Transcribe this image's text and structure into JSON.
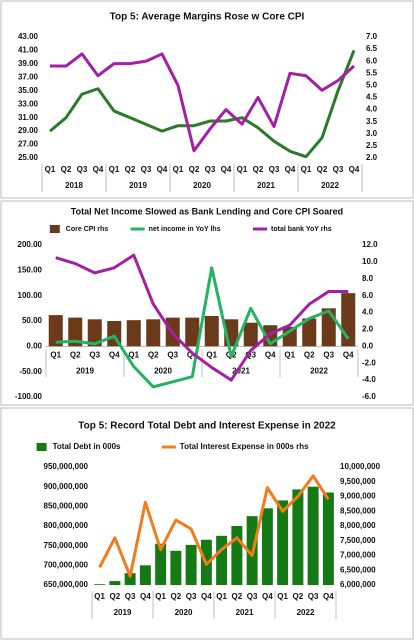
{
  "chart_data": [
    {
      "type": "line",
      "title": "Top 5: Average Margins Rose w Core CPI",
      "categories": [
        "Q1",
        "Q2",
        "Q3",
        "Q4",
        "Q1",
        "Q2",
        "Q3",
        "Q4",
        "Q1",
        "Q2",
        "Q3",
        "Q4",
        "Q1",
        "Q2",
        "Q3",
        "Q4",
        "Q1",
        "Q2",
        "Q3",
        "Q4"
      ],
      "year_groups": [
        "2018",
        "2019",
        "2020",
        "2021",
        "2022"
      ],
      "ylim": [
        25,
        43
      ],
      "yticks": [
        {
          "value": 43,
          "label": "43.00"
        },
        {
          "value": 41,
          "label": "41.00"
        },
        {
          "value": 39,
          "label": "39.00"
        },
        {
          "value": 37,
          "label": "37.00"
        },
        {
          "value": 35,
          "label": "35.00"
        },
        {
          "value": 33,
          "label": "33.00"
        },
        {
          "value": 31,
          "label": "31.00"
        },
        {
          "value": 29,
          "label": "29.00"
        },
        {
          "value": 27,
          "label": "27.00"
        },
        {
          "value": 25,
          "label": "25.00"
        }
      ],
      "y2lim": [
        2,
        7
      ],
      "y2ticks": [
        {
          "value": 7,
          "label": "7.0"
        },
        {
          "value": 6.5,
          "label": "6.5"
        },
        {
          "value": 6,
          "label": "6.0"
        },
        {
          "value": 5.5,
          "label": "5.5"
        },
        {
          "value": 5,
          "label": "5.0"
        },
        {
          "value": 4.5,
          "label": "4.5"
        },
        {
          "value": 4,
          "label": "4.0"
        },
        {
          "value": 3.5,
          "label": "3.5"
        },
        {
          "value": 3,
          "label": "3.0"
        },
        {
          "value": 2.5,
          "label": "2.5"
        },
        {
          "value": 2,
          "label": "2.0"
        }
      ],
      "series": [
        {
          "type": "line",
          "color": "#2a7a2a",
          "values": [
            29,
            31,
            34.5,
            35.3,
            32,
            31,
            30,
            29,
            29.8,
            29.8,
            30.5,
            30.5,
            31,
            29.5,
            27.5,
            26,
            25.2,
            28,
            35,
            41
          ]
        },
        {
          "type": "line",
          "axis": "y2",
          "color": "#a51fa5",
          "values": [
            5.8,
            5.8,
            6.3,
            5.4,
            5.9,
            5.9,
            6.0,
            6.3,
            5.0,
            2.3,
            3.2,
            4.0,
            3.4,
            4.5,
            3.3,
            5.5,
            5.4,
            4.8,
            5.2,
            5.8
          ]
        }
      ]
    },
    {
      "type": "combo",
      "title": "Total Net Income Slowed as Bank Lending and Core CPI Soared",
      "categories": [
        "Q1",
        "Q2",
        "Q3",
        "Q4",
        "Q1",
        "Q2",
        "Q3",
        "Q4",
        "Q1",
        "Q2",
        "Q3",
        "Q4",
        "Q1",
        "Q2",
        "Q3",
        "Q4"
      ],
      "year_groups": [
        "2019",
        "2020",
        "2021",
        "2022"
      ],
      "legend": "top",
      "ylim": [
        -100,
        200
      ],
      "yticks": [
        {
          "value": 200,
          "label": "200.00"
        },
        {
          "value": 150,
          "label": "150.00"
        },
        {
          "value": 100,
          "label": "100.00"
        },
        {
          "value": 50,
          "label": "50.00"
        },
        {
          "value": 0,
          "label": "0.00"
        },
        {
          "value": -50,
          "label": "-50.00"
        },
        {
          "value": -100,
          "label": "-100.00"
        }
      ],
      "y2lim": [
        -6,
        12
      ],
      "y2ticks": [
        {
          "value": 12,
          "label": "12.0"
        },
        {
          "value": 10,
          "label": "10.0"
        },
        {
          "value": 8,
          "label": "8.0"
        },
        {
          "value": 6,
          "label": "6.0"
        },
        {
          "value": 4,
          "label": "4.0"
        },
        {
          "value": 2,
          "label": "2.0"
        },
        {
          "value": 0,
          "label": "0.0"
        },
        {
          "value": -2,
          "label": "-2.0"
        },
        {
          "value": -4,
          "label": "-4.0"
        },
        {
          "value": -6,
          "label": "-6.0"
        }
      ],
      "series": [
        {
          "name": "Core CPI rhs",
          "type": "bar",
          "axis": "y2",
          "color": "#6b3a1b",
          "values": [
            3.7,
            3.4,
            3.2,
            3.0,
            3.1,
            3.2,
            3.4,
            3.4,
            3.6,
            3.2,
            2.8,
            2.5,
            2.3,
            3.3,
            4.5,
            6.3
          ]
        },
        {
          "name": "net income in YoY lhs",
          "type": "line",
          "color": "#22b463",
          "values": [
            8,
            10,
            5,
            20,
            -40,
            -80,
            -70,
            -60,
            155,
            -20,
            75,
            5,
            30,
            55,
            70,
            15
          ]
        },
        {
          "name": "total bank YoY rhs",
          "type": "line",
          "axis": "y2",
          "color": "#a51fa5",
          "values": [
            10.5,
            9.8,
            8.7,
            9.3,
            10.8,
            5.0,
            1.5,
            -0.8,
            -2.5,
            -4.0,
            -0.5,
            1.5,
            2.5,
            5.0,
            6.5,
            6.5
          ]
        }
      ]
    },
    {
      "type": "combo",
      "title": "Top 5: Record Total Debt and Interest Expense in 2022",
      "categories": [
        "Q1",
        "Q2",
        "Q3",
        "Q4",
        "Q1",
        "Q2",
        "Q3",
        "Q4",
        "Q1",
        "Q2",
        "Q3",
        "Q4",
        "Q1",
        "Q2",
        "Q3",
        "Q4"
      ],
      "year_groups": [
        "2019",
        "2020",
        "2021",
        "2022"
      ],
      "legend": "top",
      "ylim": [
        650000000,
        950000000
      ],
      "yticks": [
        {
          "value": 950000000,
          "label": "950,000,000"
        },
        {
          "value": 900000000,
          "label": "900,000,000"
        },
        {
          "value": 850000000,
          "label": "850,000,000"
        },
        {
          "value": 800000000,
          "label": "800,000,000"
        },
        {
          "value": 750000000,
          "label": "750,000,000"
        },
        {
          "value": 700000000,
          "label": "700,000,000"
        },
        {
          "value": 650000000,
          "label": "650,000,000"
        }
      ],
      "y2lim": [
        6000000,
        10000000
      ],
      "y2ticks": [
        {
          "value": 10000000,
          "label": "10,000,000"
        },
        {
          "value": 9500000,
          "label": "9,500,000"
        },
        {
          "value": 9000000,
          "label": "9,000,000"
        },
        {
          "value": 8500000,
          "label": "8,500,000"
        },
        {
          "value": 8000000,
          "label": "8,000,000"
        },
        {
          "value": 7500000,
          "label": "7,500,000"
        },
        {
          "value": 7000000,
          "label": "7,000,000"
        },
        {
          "value": 6500000,
          "label": "6,500,000"
        },
        {
          "value": 6000000,
          "label": "6,000,000"
        }
      ],
      "series": [
        {
          "name": "Total Debt in 000s",
          "type": "bar",
          "color": "#157a15",
          "values": [
            652000000,
            660000000,
            680000000,
            700000000,
            755000000,
            737000000,
            752000000,
            765000000,
            775000000,
            800000000,
            825000000,
            845000000,
            865000000,
            893000000,
            900000000,
            885000000
          ]
        },
        {
          "name": "Total Interest Expense in 000s rhs",
          "type": "line",
          "axis": "y2",
          "color": "#f07c1c",
          "values": [
            6600000,
            7600000,
            6300000,
            8800000,
            7200000,
            8200000,
            7900000,
            6700000,
            7200000,
            7600000,
            7000000,
            9300000,
            8500000,
            9000000,
            9700000,
            8900000
          ]
        }
      ]
    }
  ]
}
